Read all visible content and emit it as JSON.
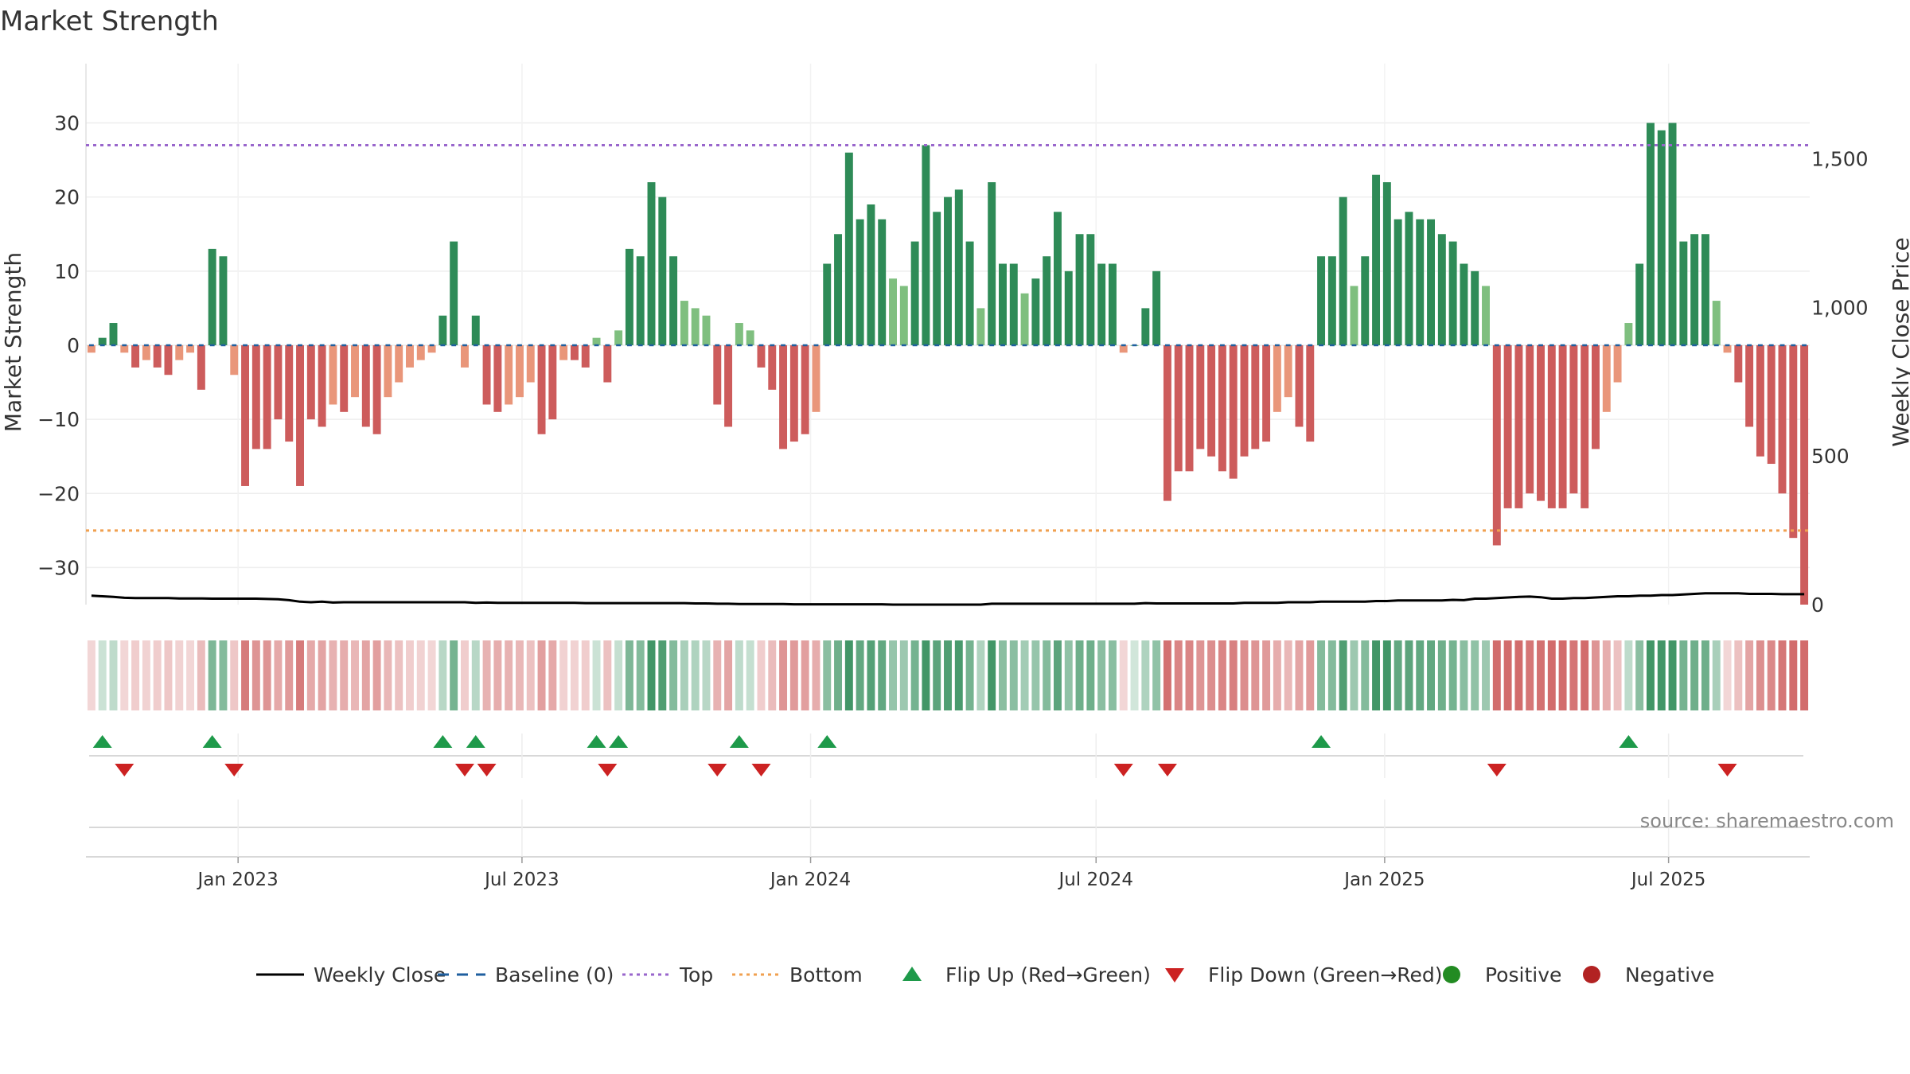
{
  "chart_data": {
    "type": "bar",
    "title": "Market Strength",
    "ylabel": "Market Strength",
    "y2label": "Weekly Close Price",
    "ylim": [
      -35,
      38
    ],
    "y2lim": [
      0,
      1820
    ],
    "yticks": [
      30,
      20,
      10,
      0,
      -10,
      -20,
      -30
    ],
    "y2ticks": [
      0,
      500,
      1000,
      1500
    ],
    "top_level": 27,
    "bottom_level": -25,
    "x_start": "2022-09-26",
    "x_end": "2025-09-29",
    "week_count": 157,
    "x_tick_labels": [
      {
        "label": "Jan 2023",
        "date": "2023-01-01"
      },
      {
        "label": "Jul 2023",
        "date": "2023-07-01"
      },
      {
        "label": "Jan 2024",
        "date": "2024-01-01"
      },
      {
        "label": "Jul 2024",
        "date": "2024-07-01"
      },
      {
        "label": "Jan 2025",
        "date": "2025-01-01"
      },
      {
        "label": "Jul 2025",
        "date": "2025-07-01"
      }
    ],
    "strength": [
      -1,
      1,
      3,
      -1,
      -3,
      -2,
      -3,
      -4,
      -2,
      -1,
      -6,
      13,
      12,
      -4,
      -19,
      -14,
      -14,
      -10,
      -13,
      -19,
      -10,
      -11,
      -8,
      -9,
      -7,
      -11,
      -12,
      -7,
      -5,
      -3,
      -2,
      -1,
      4,
      14,
      -3,
      4,
      -8,
      -9,
      -8,
      -7,
      -5,
      -12,
      -10,
      -2,
      -2,
      -3,
      1,
      -5,
      2,
      13,
      12,
      22,
      20,
      12,
      6,
      5,
      4,
      -8,
      -11,
      3,
      2,
      -3,
      -6,
      -14,
      -13,
      -12,
      -9,
      11,
      15,
      26,
      17,
      19,
      17,
      9,
      8,
      14,
      27,
      18,
      20,
      21,
      14,
      5,
      22,
      11,
      11,
      7,
      9,
      12,
      18,
      10,
      15,
      15,
      11,
      11,
      -1,
      0,
      5,
      10,
      -21,
      -17,
      -17,
      -14,
      -15,
      -17,
      -18,
      -15,
      -14,
      -13,
      -9,
      -7,
      -11,
      -13,
      12,
      12,
      20,
      8,
      12,
      23,
      22,
      17,
      18,
      17,
      17,
      15,
      14,
      11,
      10,
      8,
      -27,
      -22,
      -22,
      -20,
      -21,
      -22,
      -22,
      -20,
      -22,
      -14,
      -9,
      -5,
      3,
      11,
      30,
      29,
      30,
      14,
      15,
      15,
      6,
      -1,
      -5,
      -11,
      -15,
      -16,
      -20,
      -26,
      -35
    ],
    "weekly_close": [
      30,
      28,
      26,
      23,
      22,
      22,
      22,
      22,
      21,
      21,
      21,
      20,
      20,
      20,
      20,
      20,
      19,
      18,
      15,
      10,
      8,
      10,
      7,
      8,
      8,
      8,
      8,
      8,
      8,
      8,
      8,
      8,
      8,
      8,
      8,
      6,
      7,
      6,
      6,
      6,
      6,
      6,
      6,
      6,
      6,
      5,
      5,
      5,
      5,
      5,
      5,
      5,
      5,
      5,
      5,
      4,
      4,
      3,
      3,
      2,
      2,
      2,
      2,
      2,
      1,
      1,
      1,
      1,
      1,
      1,
      1,
      1,
      1,
      0,
      0,
      0,
      0,
      0,
      0,
      0,
      0,
      0,
      3,
      3,
      3,
      3,
      3,
      3,
      3,
      3,
      3,
      3,
      3,
      3,
      3,
      3,
      5,
      4,
      4,
      4,
      4,
      4,
      4,
      4,
      4,
      6,
      6,
      6,
      6,
      8,
      8,
      8,
      10,
      10,
      10,
      10,
      10,
      12,
      12,
      14,
      14,
      14,
      14,
      14,
      16,
      15,
      20,
      20,
      22,
      24,
      26,
      27,
      25,
      20,
      20,
      22,
      22,
      24,
      26,
      28,
      28,
      30,
      30,
      32,
      32,
      34,
      36,
      38,
      38,
      38,
      38,
      36,
      36,
      36,
      35,
      35,
      35
    ],
    "series": [
      {
        "name": "Weekly Close"
      },
      {
        "name": "Baseline (0)"
      },
      {
        "name": "Top"
      },
      {
        "name": "Bottom"
      },
      {
        "name": "Flip Up (Red→Green)"
      },
      {
        "name": "Flip Down (Green→Red)"
      },
      {
        "name": "Positive"
      },
      {
        "name": "Negative"
      }
    ],
    "legend_position": "bottom",
    "grid": true
  },
  "source_note": "source: sharemaestro.com",
  "colors": {
    "pos_dark": "#2e8b57",
    "pos_light": "#7fbf7f",
    "neg_dark": "#cd5c5c",
    "neg_light": "#e9967a",
    "top_line": "#9966cc",
    "bottom_line": "#f0a050",
    "baseline": "#1f5f9f",
    "flip_up": "#1e9a4a",
    "flip_down": "#cc2222",
    "positive_dot": "#228b22",
    "negative_dot": "#b22222",
    "price_line": "#000000"
  }
}
